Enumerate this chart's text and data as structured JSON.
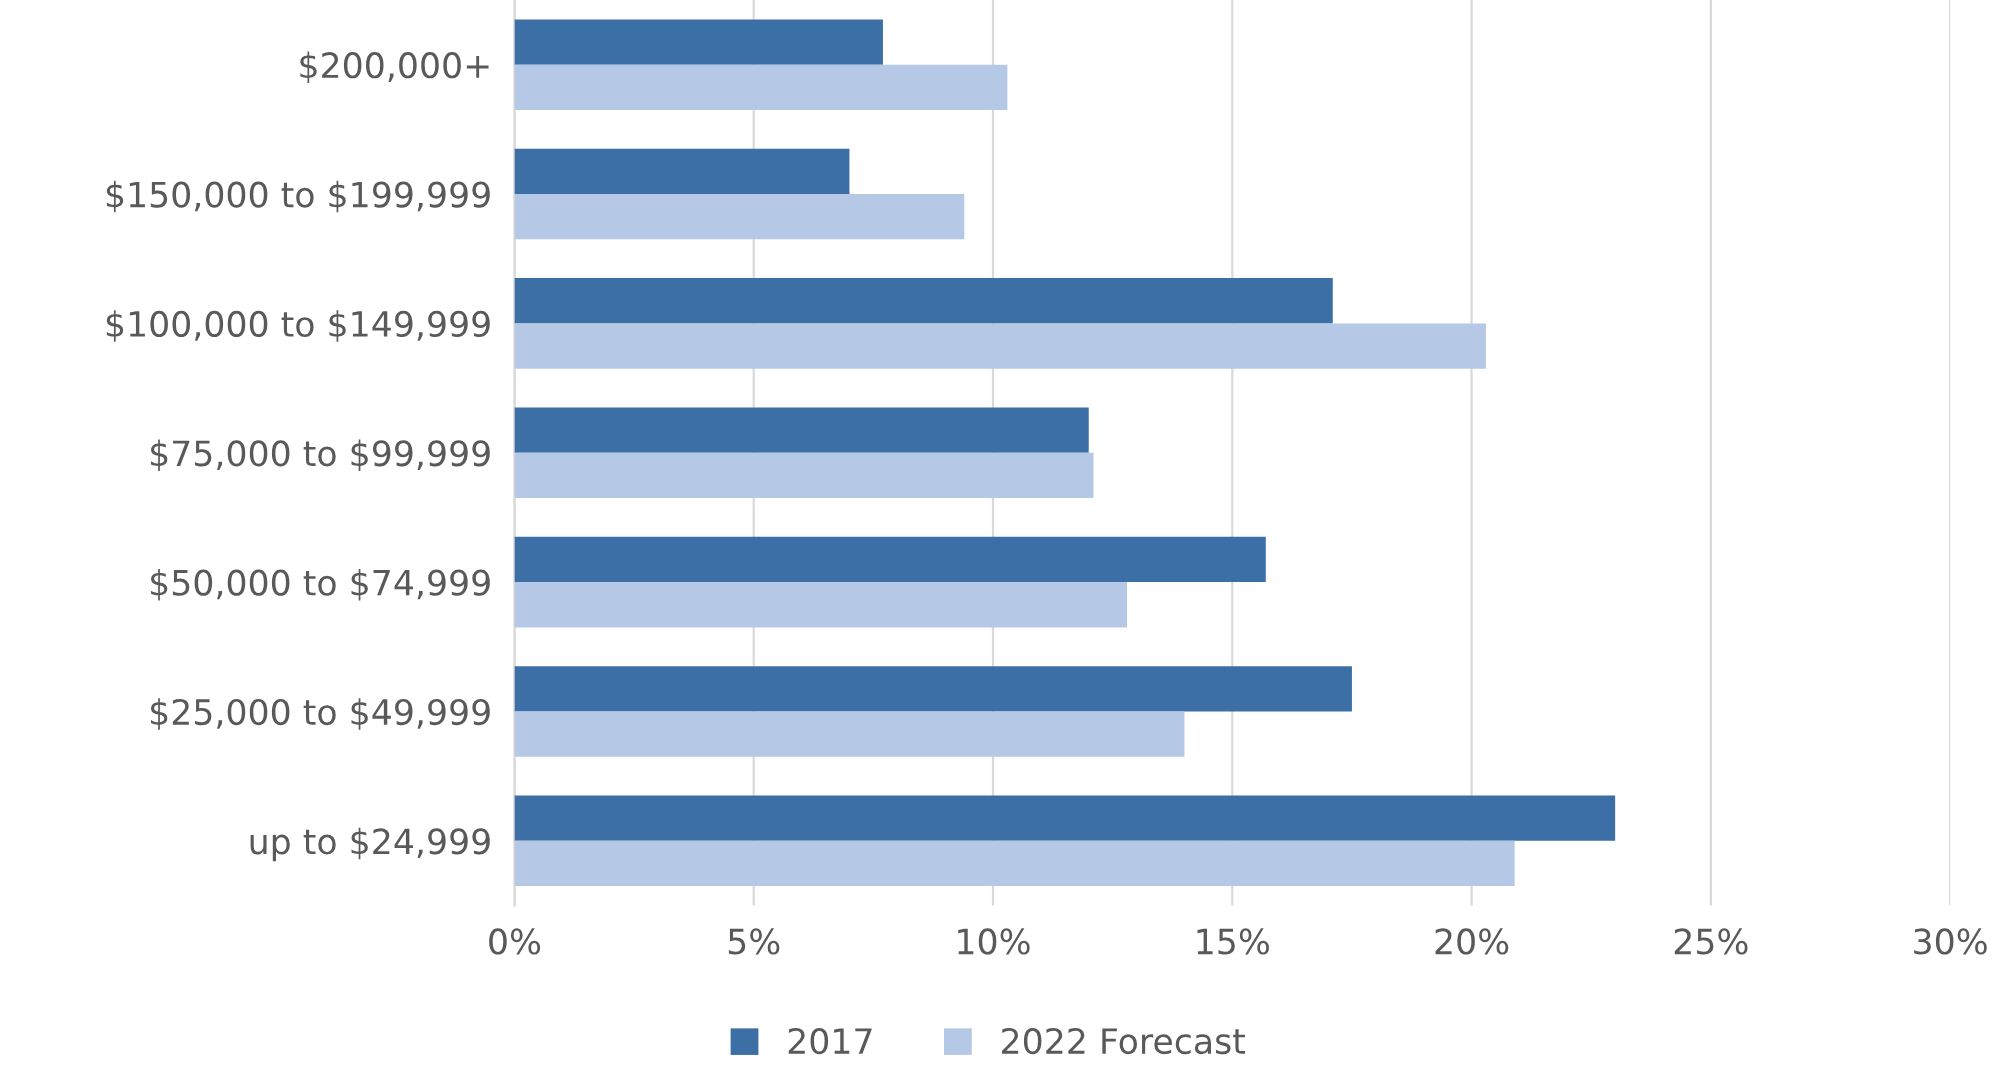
{
  "chart_data": {
    "type": "bar",
    "orientation": "horizontal",
    "categories": [
      "$200,000+",
      "$150,000 to $199,999",
      "$100,000 to $149,999",
      "$75,000 to $99,999",
      "$50,000 to $74,999",
      "$25,000 to $49,999",
      "up to $24,999"
    ],
    "series": [
      {
        "name": "2017",
        "color": "#3b6fa6",
        "values": [
          7.7,
          7.0,
          17.1,
          12.0,
          15.7,
          17.5,
          23.0
        ]
      },
      {
        "name": "2022 Forecast",
        "color": "#b5c9e6",
        "values": [
          10.3,
          9.4,
          20.3,
          12.1,
          12.8,
          14.0,
          20.9
        ]
      }
    ],
    "xlim": [
      0,
      30
    ],
    "xticks": [
      {
        "value": 0,
        "label": "0%"
      },
      {
        "value": 5,
        "label": "5%"
      },
      {
        "value": 10,
        "label": "10%"
      },
      {
        "value": 15,
        "label": "15%"
      },
      {
        "value": 20,
        "label": "20%"
      },
      {
        "value": 25,
        "label": "25%"
      },
      {
        "value": 30,
        "label": "30%"
      }
    ],
    "grid": "x",
    "legend": "bottom"
  }
}
